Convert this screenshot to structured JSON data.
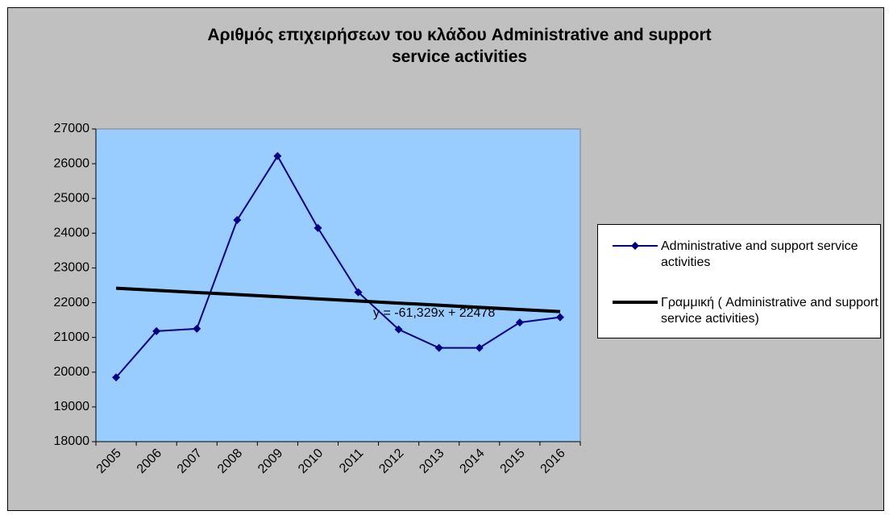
{
  "chart_data": {
    "type": "line",
    "title": "Αριθμός επιχειρήσεων του κλάδου  Administrative and support service activities",
    "categories": [
      "2005",
      "2006",
      "2007",
      "2008",
      "2009",
      "2010",
      "2011",
      "2012",
      "2013",
      "2014",
      "2015",
      "2016"
    ],
    "series": [
      {
        "name": "Administrative and support service activities",
        "color": "#000080",
        "values": [
          19850,
          21180,
          21250,
          24380,
          26220,
          24150,
          22300,
          21230,
          20700,
          20700,
          21430,
          21580
        ]
      }
    ],
    "trendline": {
      "name": "Γραμμική ( Administrative and support service activities)",
      "color": "#000000",
      "slope": -61.329,
      "intercept": 22478,
      "label": "y = -61,329x + 22478"
    },
    "ylim": [
      18000,
      27000
    ],
    "yticks": [
      18000,
      19000,
      20000,
      21000,
      22000,
      23000,
      24000,
      25000,
      26000,
      27000
    ],
    "plot_color": "#99ccff",
    "background": "#c0c0c0",
    "legend": "right"
  }
}
